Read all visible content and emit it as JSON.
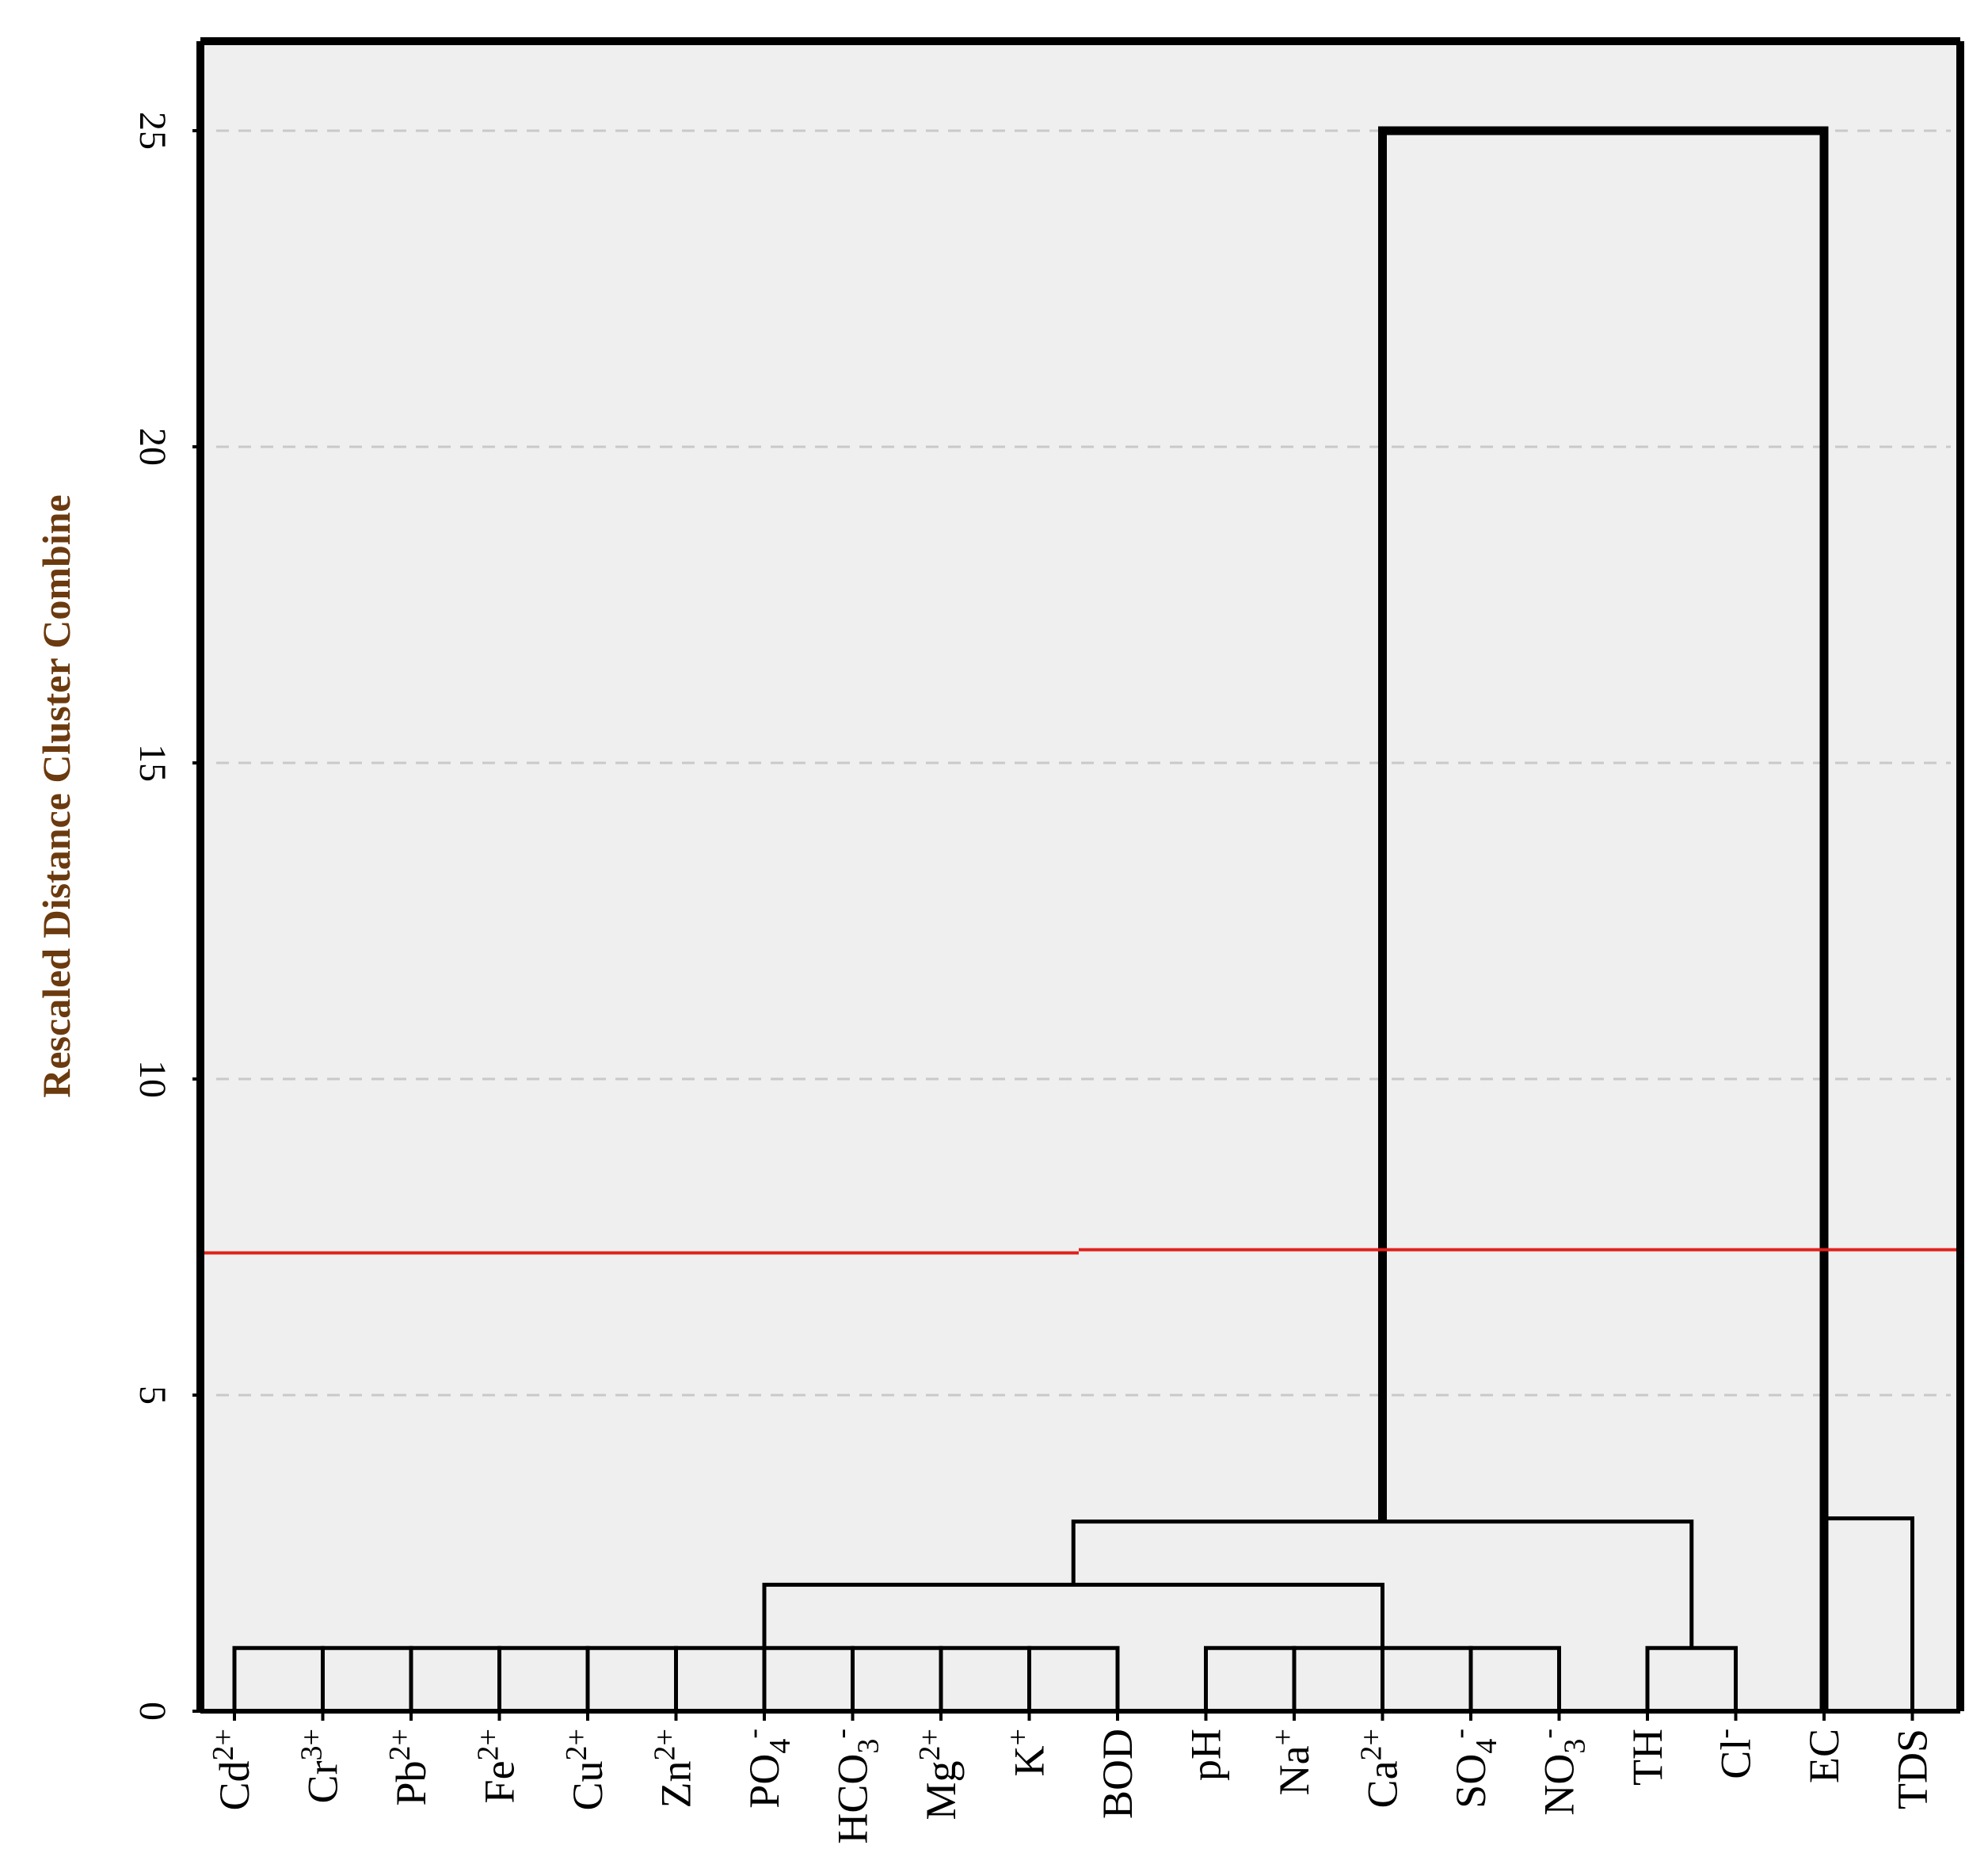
{
  "chart_data": {
    "type": "dendrogram",
    "title": "",
    "xlabel": "",
    "ylabel": "Rescaled Distance Cluster Combine",
    "ylim": [
      0,
      26.3
    ],
    "yticks": [
      0,
      5,
      10,
      15,
      20,
      25
    ],
    "grid": "dashed horizontal",
    "leaves": [
      {
        "base": "Cd",
        "sup": "2+",
        "sub": ""
      },
      {
        "base": "Cr",
        "sup": "3+",
        "sub": ""
      },
      {
        "base": "Pb",
        "sup": "2+",
        "sub": ""
      },
      {
        "base": "Fe",
        "sup": "2+",
        "sub": ""
      },
      {
        "base": "Cu",
        "sup": "2+",
        "sub": ""
      },
      {
        "base": "Zn",
        "sup": "2+",
        "sub": ""
      },
      {
        "base": "PO",
        "sup": "-",
        "sub": "4"
      },
      {
        "base": "HCO",
        "sup": "-",
        "sub": "3"
      },
      {
        "base": "Mg",
        "sup": "2+",
        "sub": ""
      },
      {
        "base": "K",
        "sup": "+",
        "sub": ""
      },
      {
        "base": "BOD",
        "sup": "",
        "sub": ""
      },
      {
        "base": "pH",
        "sup": "",
        "sub": ""
      },
      {
        "base": "Na",
        "sup": "+",
        "sub": ""
      },
      {
        "base": "Ca",
        "sup": "2+",
        "sub": ""
      },
      {
        "base": "SO",
        "sup": "-",
        "sub": "4"
      },
      {
        "base": "NO",
        "sup": "-",
        "sub": "3"
      },
      {
        "base": "TH",
        "sup": "",
        "sub": ""
      },
      {
        "base": "Cl",
        "sup": "-",
        "sub": ""
      },
      {
        "base": "EC",
        "sup": "",
        "sub": ""
      },
      {
        "base": "TDS",
        "sup": "",
        "sub": ""
      }
    ],
    "merges": [
      {
        "a": 0,
        "b": 1,
        "height": 1.0
      },
      {
        "a": 1,
        "b": 2,
        "height": 1.0
      },
      {
        "a": 2,
        "b": 3,
        "height": 1.0
      },
      {
        "a": 3,
        "b": 4,
        "height": 1.0
      },
      {
        "a": 4,
        "b": 5,
        "height": 1.0
      },
      {
        "a": 5,
        "b": 6,
        "height": 1.0
      },
      {
        "a": 6,
        "b": 7,
        "height": 1.0
      },
      {
        "a": 7,
        "b": 8,
        "height": 1.0
      },
      {
        "a": 8,
        "b": 9,
        "height": 1.0
      },
      {
        "a": 9,
        "b": 10,
        "height": 1.0
      },
      {
        "a": 11,
        "b": 12,
        "height": 1.0
      },
      {
        "a": 12,
        "b": 13,
        "height": 1.0
      },
      {
        "a": 13,
        "b": 14,
        "height": 1.0
      },
      {
        "a": 14,
        "b": 15,
        "height": 1.0
      },
      {
        "a": 16,
        "b": 17,
        "height": 1.0
      },
      {
        "a": 6,
        "b": 13,
        "height": 2.0
      },
      {
        "a": 9.5,
        "b": 16.5,
        "height": 3.0
      },
      {
        "a": 18,
        "b": 19,
        "height": 3.05
      },
      {
        "a": 13,
        "b": 18,
        "height": 25.0
      }
    ],
    "cut_line": {
      "value": 7.3,
      "color": "#e0201a"
    },
    "colors": {
      "background": "#efefef",
      "line": "#000000",
      "ylabel": "#6b3a0e",
      "cut": "#e0201a"
    }
  }
}
